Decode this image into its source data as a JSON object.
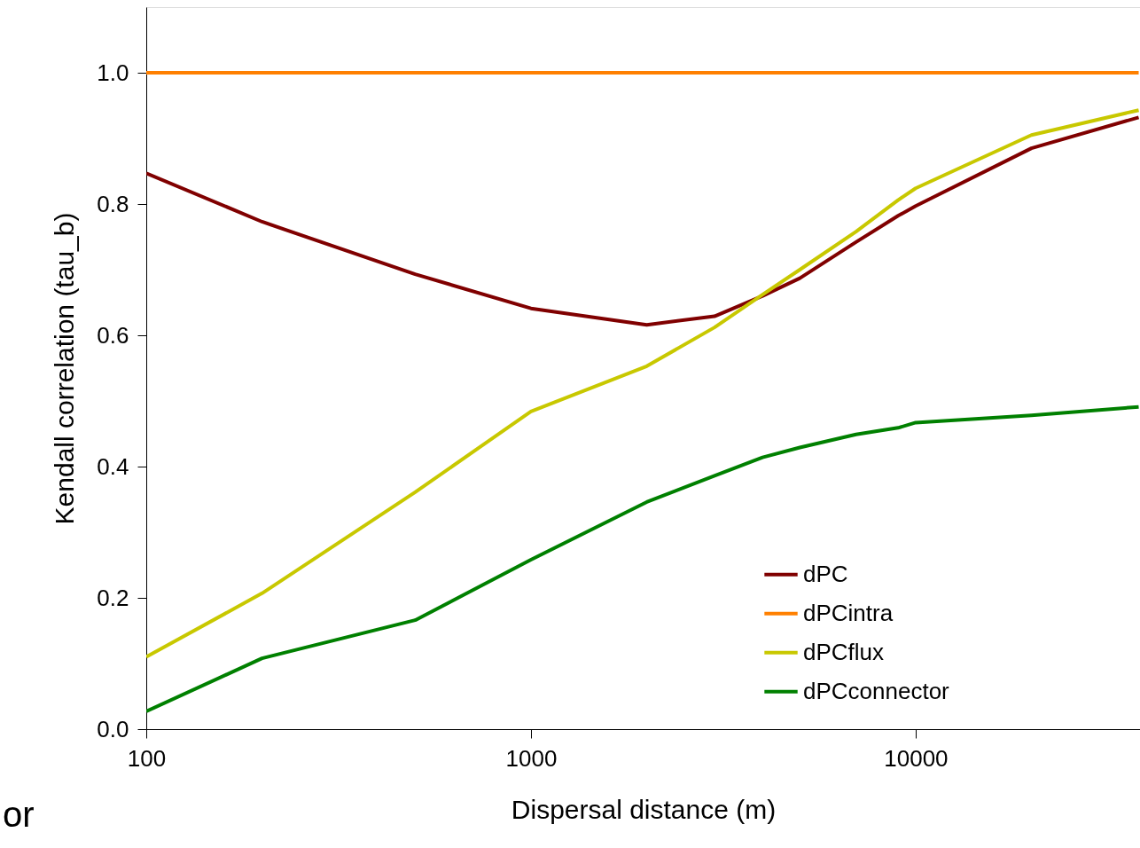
{
  "chart_data": {
    "type": "line",
    "xlabel": "Dispersal distance (m)",
    "ylabel": "Kendall correlation (tau_b)",
    "x": [
      100,
      200,
      500,
      1000,
      2000,
      3000,
      4000,
      5000,
      7000,
      9000,
      10000,
      20000,
      38000
    ],
    "series": [
      {
        "name": "dPC",
        "color": "#800000",
        "values": [
          0.847,
          0.773,
          0.693,
          0.641,
          0.616,
          0.629,
          0.66,
          0.687,
          0.742,
          0.782,
          0.797,
          0.885,
          0.932
        ]
      },
      {
        "name": "dPCintra",
        "color": "#ff8000",
        "values": [
          1.0,
          1.0,
          1.0,
          1.0,
          1.0,
          1.0,
          1.0,
          1.0,
          1.0,
          1.0,
          1.0,
          1.0,
          1.0
        ]
      },
      {
        "name": "dPCflux",
        "color": "#c8c800",
        "values": [
          0.11,
          0.207,
          0.361,
          0.484,
          0.553,
          0.612,
          0.662,
          0.7,
          0.758,
          0.806,
          0.824,
          0.905,
          0.943
        ]
      },
      {
        "name": "dPCconnector",
        "color": "#008000",
        "values": [
          0.027,
          0.108,
          0.166,
          0.258,
          0.346,
          0.386,
          0.414,
          0.429,
          0.449,
          0.459,
          0.467,
          0.478,
          0.491
        ]
      }
    ],
    "log": "x",
    "xlim": [
      100,
      38300
    ],
    "xticks": [
      100,
      1000,
      10000
    ],
    "ylim": [
      0,
      1.1
    ],
    "yticks": [
      {
        "value": 0,
        "label": "0.0"
      },
      {
        "value": 0.2,
        "label": "0.2"
      },
      {
        "value": 0.4,
        "label": "0.4"
      },
      {
        "value": 0.6,
        "label": "0.6"
      },
      {
        "value": 0.8,
        "label": "0.8"
      },
      {
        "value": 1.0,
        "label": "1.0"
      }
    ],
    "grid": false,
    "legend": "bottom right",
    "annotations": [
      "or"
    ]
  }
}
